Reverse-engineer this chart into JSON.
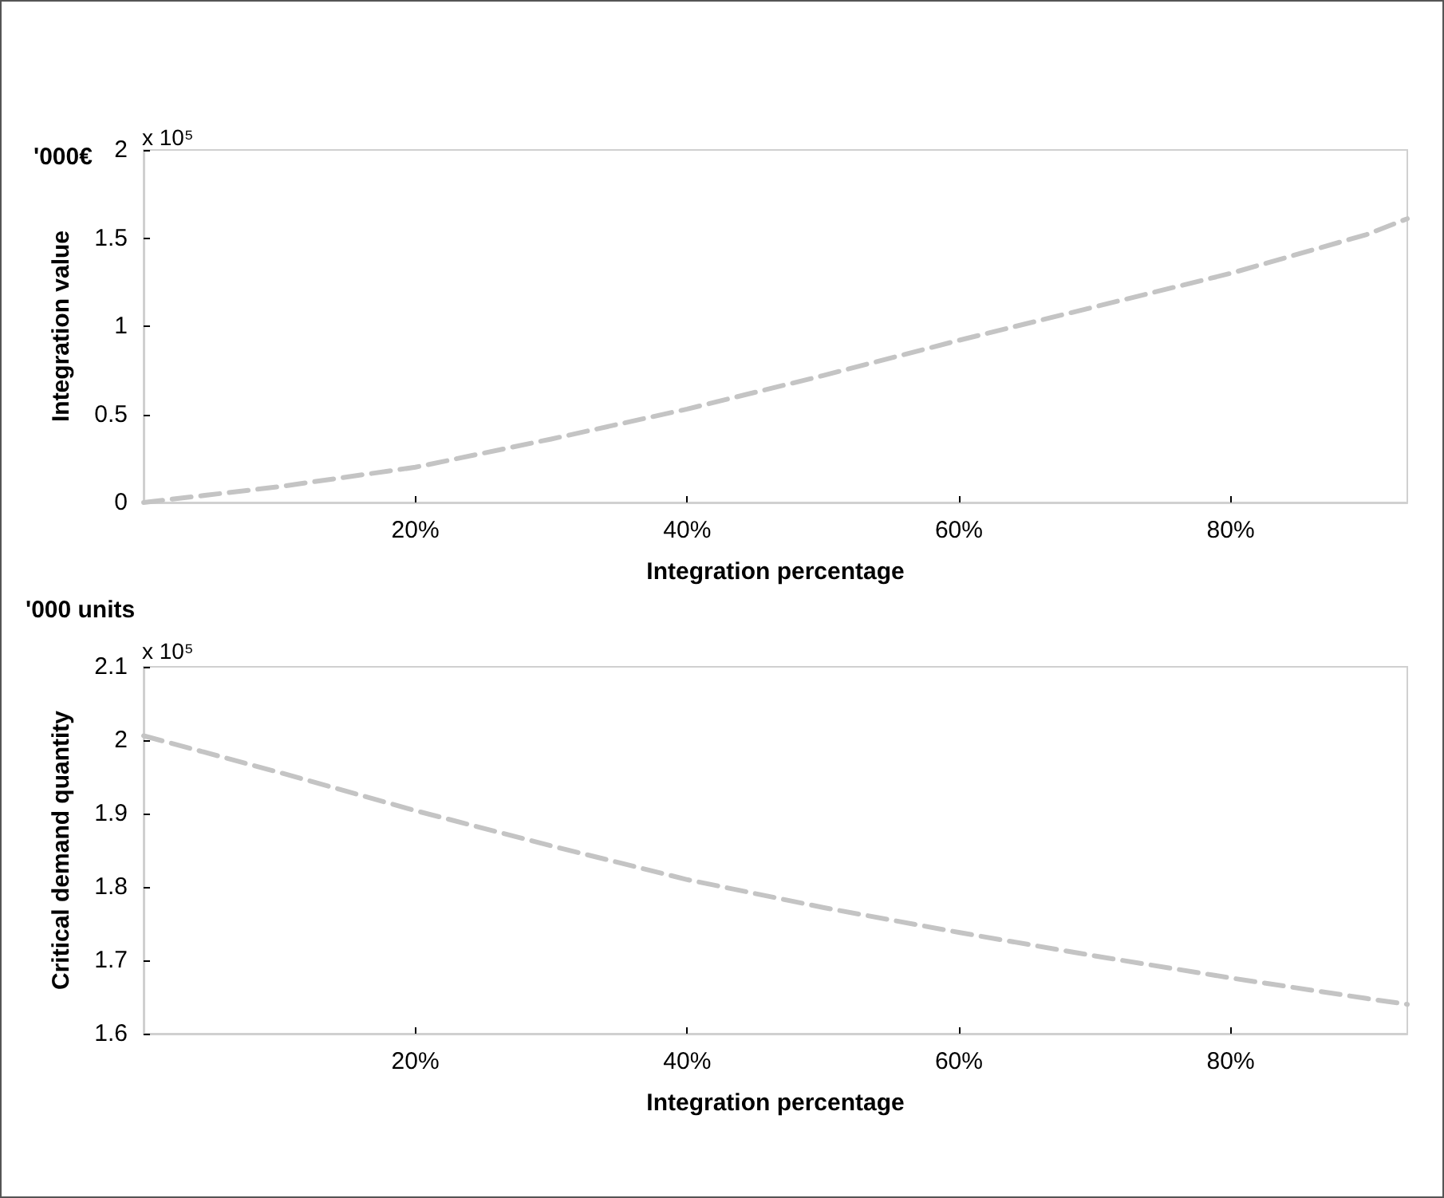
{
  "chart_data": [
    {
      "type": "line",
      "xlabel": "Integration percentage",
      "ylabel": "Integration value",
      "annotations": [
        "'000€",
        "x 10⁵"
      ],
      "x": [
        0,
        10,
        20,
        30,
        40,
        50,
        60,
        70,
        80,
        90,
        93
      ],
      "series": [
        {
          "color": "#c4c4c4",
          "values": [
            0,
            0.09,
            0.2,
            0.36,
            0.53,
            0.72,
            0.92,
            1.11,
            1.3,
            1.52,
            1.61
          ]
        }
      ],
      "xlim": [
        0,
        93
      ],
      "xticks": [
        {
          "value": 20,
          "label": "20%"
        },
        {
          "value": 40,
          "label": "40%"
        },
        {
          "value": 60,
          "label": "60%"
        },
        {
          "value": 80,
          "label": "80%"
        }
      ],
      "ylim": [
        0,
        2
      ],
      "yticks": [
        0,
        0.5,
        1,
        1.5,
        2
      ],
      "line_style": "dashed",
      "marker": "none"
    },
    {
      "type": "line",
      "xlabel": "Integration percentage",
      "ylabel": "Critical demand quantity",
      "annotations": [
        "'000 units",
        "x 10⁵"
      ],
      "x": [
        0,
        10,
        20,
        30,
        40,
        50,
        60,
        70,
        80,
        90,
        93
      ],
      "series": [
        {
          "color": "#c4c4c4",
          "values": [
            2.006,
            1.956,
            1.904,
            1.856,
            1.81,
            1.772,
            1.738,
            1.706,
            1.676,
            1.648,
            1.64
          ]
        }
      ],
      "xlim": [
        0,
        93
      ],
      "xticks": [
        {
          "value": 20,
          "label": "20%"
        },
        {
          "value": 40,
          "label": "40%"
        },
        {
          "value": 60,
          "label": "60%"
        },
        {
          "value": 80,
          "label": "80%"
        }
      ],
      "ylim": [
        1.6,
        2.1
      ],
      "yticks": [
        1.6,
        1.7,
        1.8,
        1.9,
        2,
        2.1
      ],
      "line_style": "dashed",
      "marker": "none"
    }
  ]
}
